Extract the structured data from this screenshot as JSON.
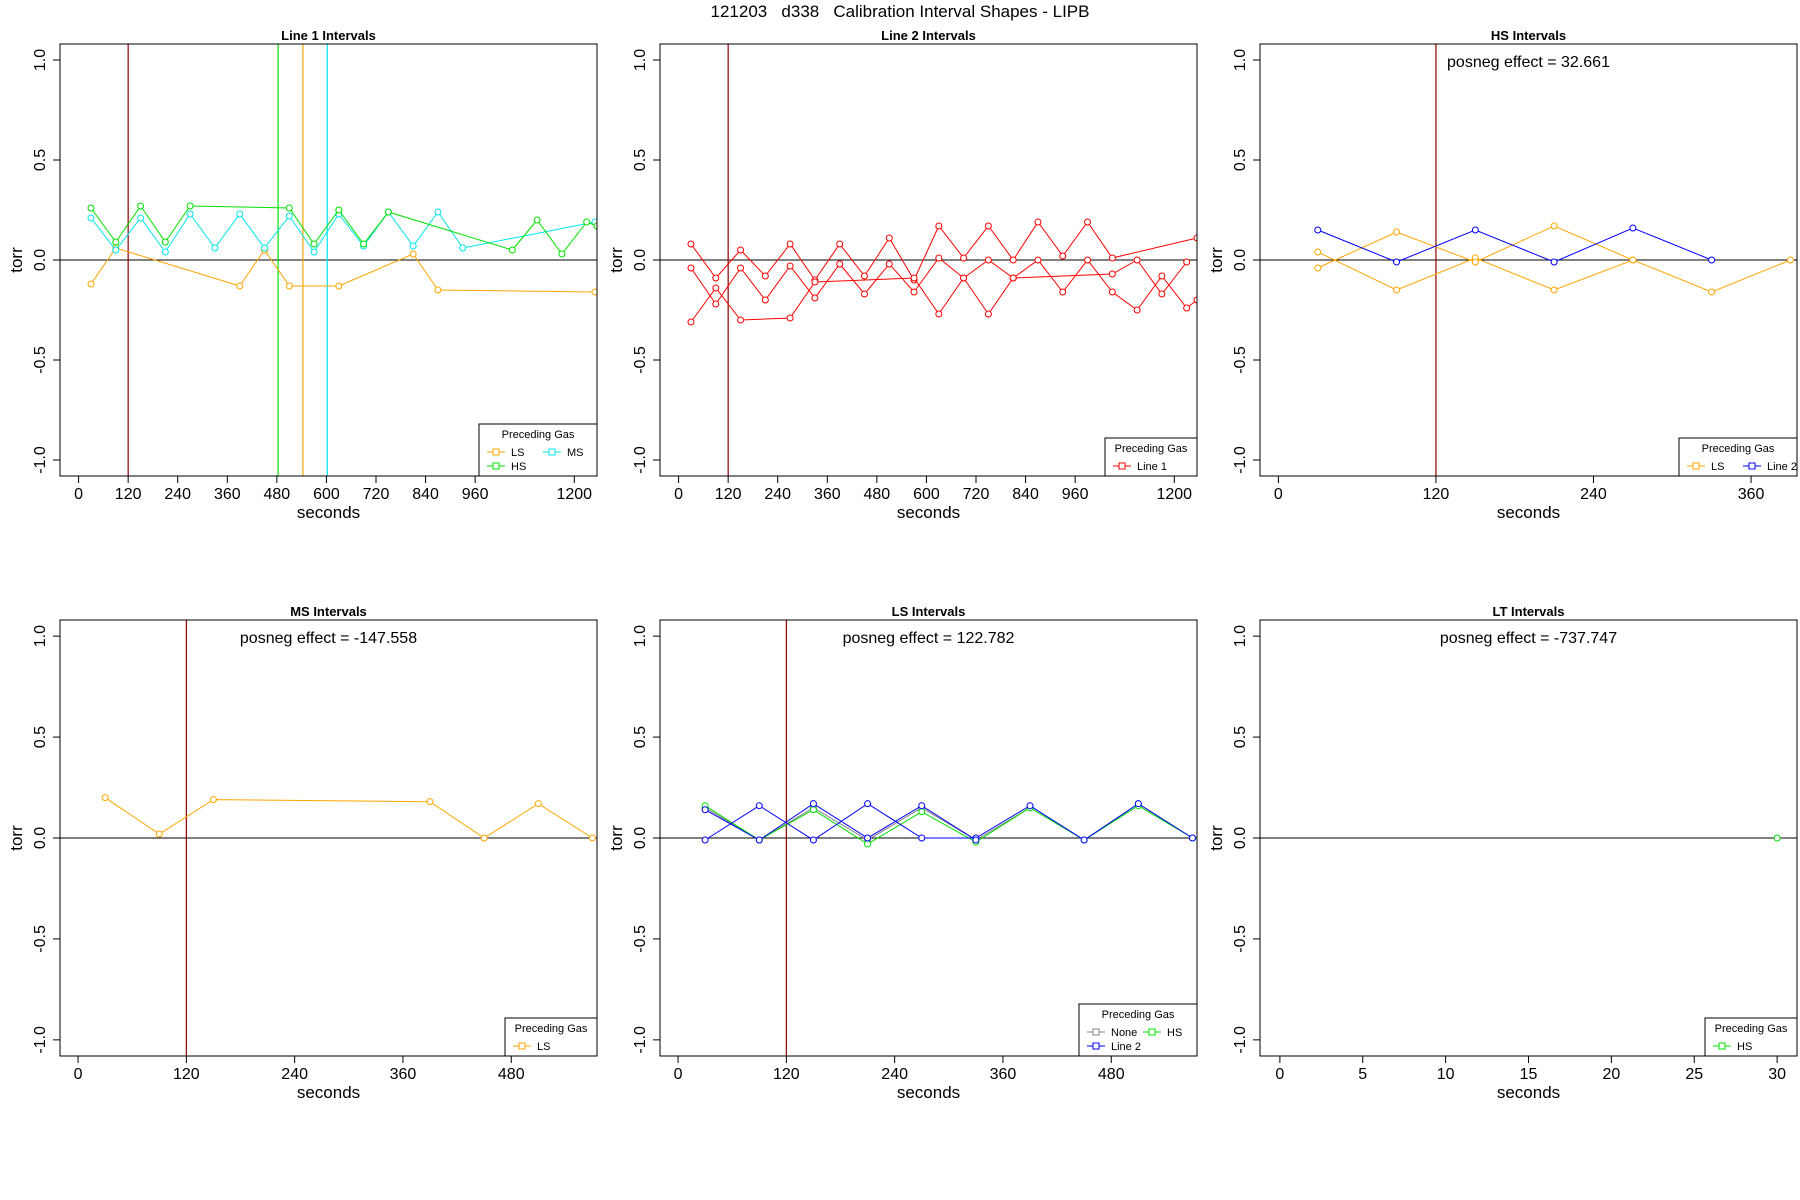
{
  "title": "121203   d338   Calibration Interval Shapes - LIPB",
  "colors": {
    "LS": "#FFA500",
    "HS": "#00E000",
    "MS": "#00E5EE",
    "Line 1": "#FF0000",
    "Line 2": "#0000FF",
    "None": "#808080",
    "marker": "#8B0000"
  },
  "chart_data": [
    {
      "type": "line",
      "title": "Line 1 Intervals",
      "xlabel": "seconds",
      "ylabel": "torr",
      "xlim": [
        -45,
        1255
      ],
      "ylim": [
        -1.08,
        1.08
      ],
      "xticks": [
        0,
        120,
        240,
        360,
        480,
        600,
        720,
        840,
        960,
        1200
      ],
      "yticks": [
        -1.0,
        -0.5,
        0.0,
        0.5,
        1.0
      ],
      "hline": 0,
      "vlines": [
        {
          "x": 120,
          "color": "#8B0000"
        },
        {
          "x": 483,
          "color": "#00E000"
        },
        {
          "x": 543,
          "color": "#FFA500"
        },
        {
          "x": 602,
          "color": "#00E5EE"
        }
      ],
      "annotation": "",
      "legend": {
        "title": "Preceding Gas",
        "position": "bottom-right",
        "cols": 2,
        "items": [
          "LS",
          "MS",
          "HS"
        ]
      },
      "series": [
        {
          "name": "LS",
          "color": "#FFA500",
          "points": [
            [
              30,
              -0.12
            ],
            [
              90,
              0.06
            ],
            [
              390,
              -0.13
            ],
            [
              450,
              0.05
            ],
            [
              510,
              -0.13
            ],
            [
              630,
              -0.13
            ],
            [
              810,
              0.03
            ],
            [
              870,
              -0.15
            ],
            [
              1250,
              -0.16
            ]
          ]
        },
        {
          "name": "MS",
          "color": "#00E5EE",
          "points": [
            [
              30,
              0.21
            ],
            [
              90,
              0.05
            ],
            [
              150,
              0.21
            ],
            [
              210,
              0.04
            ],
            [
              270,
              0.23
            ],
            [
              330,
              0.06
            ],
            [
              390,
              0.23
            ],
            [
              450,
              0.06
            ],
            [
              510,
              0.22
            ],
            [
              570,
              0.04
            ],
            [
              630,
              0.23
            ],
            [
              690,
              0.07
            ],
            [
              750,
              0.24
            ],
            [
              810,
              0.07
            ],
            [
              870,
              0.24
            ],
            [
              930,
              0.06
            ],
            [
              1250,
              0.19
            ]
          ]
        },
        {
          "name": "HS",
          "color": "#00E000",
          "points": [
            [
              30,
              0.26
            ],
            [
              90,
              0.09
            ],
            [
              150,
              0.27
            ],
            [
              210,
              0.09
            ],
            [
              270,
              0.27
            ],
            [
              510,
              0.26
            ],
            [
              570,
              0.08
            ],
            [
              630,
              0.25
            ],
            [
              690,
              0.08
            ],
            [
              750,
              0.24
            ],
            [
              1050,
              0.05
            ],
            [
              1110,
              0.2
            ],
            [
              1170,
              0.03
            ],
            [
              1230,
              0.19
            ],
            [
              1255,
              0.17
            ]
          ]
        }
      ]
    },
    {
      "type": "line",
      "title": "Line 2 Intervals",
      "xlabel": "seconds",
      "ylabel": "torr",
      "xlim": [
        -45,
        1255
      ],
      "ylim": [
        -1.08,
        1.08
      ],
      "xticks": [
        0,
        120,
        240,
        360,
        480,
        600,
        720,
        840,
        960,
        1200
      ],
      "yticks": [
        -1.0,
        -0.5,
        0.0,
        0.5,
        1.0
      ],
      "hline": 0,
      "vlines": [
        {
          "x": 120,
          "color": "#8B0000"
        }
      ],
      "annotation": "",
      "legend": {
        "title": "Preceding Gas",
        "position": "bottom-right",
        "cols": 1,
        "items": [
          "Line 1"
        ]
      },
      "series": [
        {
          "name": "Line 1",
          "color": "#FF0000",
          "points": [
            [
              30,
              0.08
            ],
            [
              90,
              -0.09
            ],
            [
              150,
              0.05
            ],
            [
              210,
              -0.08
            ],
            [
              270,
              0.08
            ],
            [
              330,
              -0.1
            ],
            [
              390,
              0.08
            ],
            [
              450,
              -0.08
            ],
            [
              510,
              0.11
            ],
            [
              570,
              -0.1
            ],
            [
              630,
              0.17
            ],
            [
              690,
              0.01
            ],
            [
              750,
              0.17
            ],
            [
              810,
              0.0
            ],
            [
              870,
              0.19
            ],
            [
              930,
              0.02
            ],
            [
              990,
              0.19
            ],
            [
              1050,
              0.01
            ],
            [
              1255,
              0.11
            ]
          ]
        },
        {
          "name": "",
          "color": "#FF0000",
          "points": [
            [
              30,
              -0.04
            ],
            [
              90,
              -0.22
            ],
            [
              150,
              -0.04
            ],
            [
              210,
              -0.2
            ],
            [
              270,
              -0.03
            ],
            [
              330,
              -0.19
            ],
            [
              390,
              -0.02
            ],
            [
              450,
              -0.17
            ],
            [
              510,
              -0.02
            ],
            [
              570,
              -0.16
            ],
            [
              630,
              0.01
            ],
            [
              690,
              -0.09
            ],
            [
              750,
              0.0
            ],
            [
              810,
              -0.09
            ],
            [
              870,
              0.0
            ],
            [
              930,
              -0.16
            ],
            [
              990,
              0.0
            ],
            [
              1050,
              -0.16
            ],
            [
              1110,
              -0.25
            ],
            [
              1170,
              -0.08
            ],
            [
              1230,
              -0.24
            ],
            [
              1255,
              -0.2
            ]
          ]
        },
        {
          "name": "",
          "color": "#FF0000",
          "points": [
            [
              30,
              -0.31
            ],
            [
              90,
              -0.14
            ],
            [
              150,
              -0.3
            ],
            [
              270,
              -0.29
            ],
            [
              330,
              -0.11
            ],
            [
              570,
              -0.09
            ],
            [
              630,
              -0.27
            ],
            [
              690,
              -0.09
            ],
            [
              750,
              -0.27
            ],
            [
              810,
              -0.09
            ],
            [
              1050,
              -0.07
            ],
            [
              1110,
              -0.0
            ],
            [
              1170,
              -0.17
            ],
            [
              1230,
              -0.01
            ]
          ]
        }
      ]
    },
    {
      "type": "line",
      "title": "HS Intervals",
      "xlabel": "seconds",
      "ylabel": "torr",
      "xlim": [
        -14,
        395
      ],
      "ylim": [
        -1.08,
        1.08
      ],
      "xticks": [
        0,
        120,
        240,
        360
      ],
      "yticks": [
        -1.0,
        -0.5,
        0.0,
        0.5,
        1.0
      ],
      "hline": 0,
      "vlines": [
        {
          "x": 120,
          "color": "#8B0000"
        }
      ],
      "annotation": "posneg effect = 32.661",
      "legend": {
        "title": "Preceding Gas",
        "position": "bottom-right",
        "cols": 2,
        "items": [
          "LS",
          "Line 2"
        ]
      },
      "series": [
        {
          "name": "LS",
          "color": "#FFA500",
          "points": [
            [
              30,
              0.04
            ],
            [
              90,
              -0.15
            ],
            [
              150,
              0.01
            ],
            [
              210,
              -0.15
            ],
            [
              270,
              0.0
            ],
            [
              330,
              -0.16
            ],
            [
              390,
              0.0
            ]
          ]
        },
        {
          "name": "",
          "color": "#FFA500",
          "points": [
            [
              30,
              -0.04
            ],
            [
              90,
              0.14
            ],
            [
              150,
              -0.01
            ],
            [
              210,
              0.17
            ],
            [
              270,
              0.0
            ]
          ]
        },
        {
          "name": "Line 2",
          "color": "#0000FF",
          "points": [
            [
              30,
              0.15
            ],
            [
              90,
              -0.01
            ],
            [
              150,
              0.15
            ],
            [
              210,
              -0.01
            ],
            [
              270,
              0.16
            ],
            [
              330,
              0.0
            ]
          ]
        }
      ]
    },
    {
      "type": "line",
      "title": "MS Intervals",
      "xlabel": "seconds",
      "ylabel": "torr",
      "xlim": [
        -20,
        575
      ],
      "ylim": [
        -1.08,
        1.08
      ],
      "xticks": [
        0,
        120,
        240,
        360,
        480
      ],
      "yticks": [
        -1.0,
        -0.5,
        0.0,
        0.5,
        1.0
      ],
      "hline": 0,
      "vlines": [
        {
          "x": 120,
          "color": "#8B0000"
        }
      ],
      "annotation": "posneg effect = -147.558",
      "legend": {
        "title": "Preceding Gas",
        "position": "bottom-right",
        "cols": 1,
        "items": [
          "LS"
        ]
      },
      "series": [
        {
          "name": "LS",
          "color": "#FFA500",
          "points": [
            [
              30,
              0.2
            ],
            [
              90,
              0.02
            ],
            [
              150,
              0.19
            ],
            [
              390,
              0.18
            ],
            [
              450,
              0.0
            ],
            [
              510,
              0.17
            ],
            [
              570,
              0.0
            ]
          ]
        }
      ]
    },
    {
      "type": "line",
      "title": "LS Intervals",
      "xlabel": "seconds",
      "ylabel": "torr",
      "xlim": [
        -20,
        575
      ],
      "ylim": [
        -1.08,
        1.08
      ],
      "xticks": [
        0,
        120,
        240,
        360,
        480
      ],
      "yticks": [
        -1.0,
        -0.5,
        0.0,
        0.5,
        1.0
      ],
      "hline": 0,
      "vlines": [
        {
          "x": 120,
          "color": "#8B0000"
        }
      ],
      "annotation": "posneg effect = 122.782",
      "legend": {
        "title": "Preceding Gas",
        "position": "bottom-right",
        "cols": 2,
        "items": [
          "None",
          "HS",
          "Line 2"
        ]
      },
      "series": [
        {
          "name": "None",
          "color": "#808080",
          "points": [
            [
              30,
              0.15
            ],
            [
              90,
              -0.01
            ],
            [
              150,
              0.15
            ],
            [
              210,
              -0.01
            ],
            [
              270,
              0.15
            ],
            [
              330,
              -0.01
            ],
            [
              390,
              0.15
            ],
            [
              450,
              -0.01
            ],
            [
              510,
              0.17
            ],
            [
              570,
              0.0
            ]
          ]
        },
        {
          "name": "HS",
          "color": "#00E000",
          "points": [
            [
              30,
              0.16
            ],
            [
              90,
              -0.01
            ],
            [
              150,
              0.14
            ],
            [
              210,
              -0.03
            ],
            [
              270,
              0.13
            ],
            [
              330,
              -0.02
            ],
            [
              390,
              0.15
            ],
            [
              450,
              -0.01
            ],
            [
              510,
              0.16
            ],
            [
              570,
              0.0
            ]
          ]
        },
        {
          "name": "Line 2",
          "color": "#0000FF",
          "points": [
            [
              30,
              -0.01
            ],
            [
              90,
              0.16
            ],
            [
              150,
              -0.01
            ],
            [
              210,
              0.17
            ],
            [
              270,
              0.0
            ],
            [
              330,
              0.0
            ],
            [
              390,
              0.16
            ],
            [
              450,
              -0.01
            ],
            [
              510,
              0.17
            ],
            [
              570,
              0.0
            ]
          ]
        },
        {
          "name": "",
          "color": "#0000FF",
          "points": [
            [
              30,
              0.14
            ],
            [
              90,
              -0.01
            ],
            [
              150,
              0.17
            ],
            [
              210,
              0.0
            ],
            [
              270,
              0.16
            ],
            [
              330,
              -0.01
            ]
          ]
        }
      ]
    },
    {
      "type": "line",
      "title": "LT Intervals",
      "xlabel": "seconds",
      "ylabel": "torr",
      "xlim": [
        -1.2,
        31.2
      ],
      "ylim": [
        -1.08,
        1.08
      ],
      "xticks": [
        0,
        5,
        10,
        15,
        20,
        25,
        30
      ],
      "yticks": [
        -1.0,
        -0.5,
        0.0,
        0.5,
        1.0
      ],
      "hline": 0,
      "vlines": [],
      "annotation": "posneg effect = -737.747",
      "legend": {
        "title": "Preceding Gas",
        "position": "bottom-right",
        "cols": 1,
        "items": [
          "HS"
        ]
      },
      "series": [
        {
          "name": "HS",
          "color": "#00E000",
          "points": [
            [
              30,
              0.0
            ]
          ]
        }
      ]
    }
  ]
}
